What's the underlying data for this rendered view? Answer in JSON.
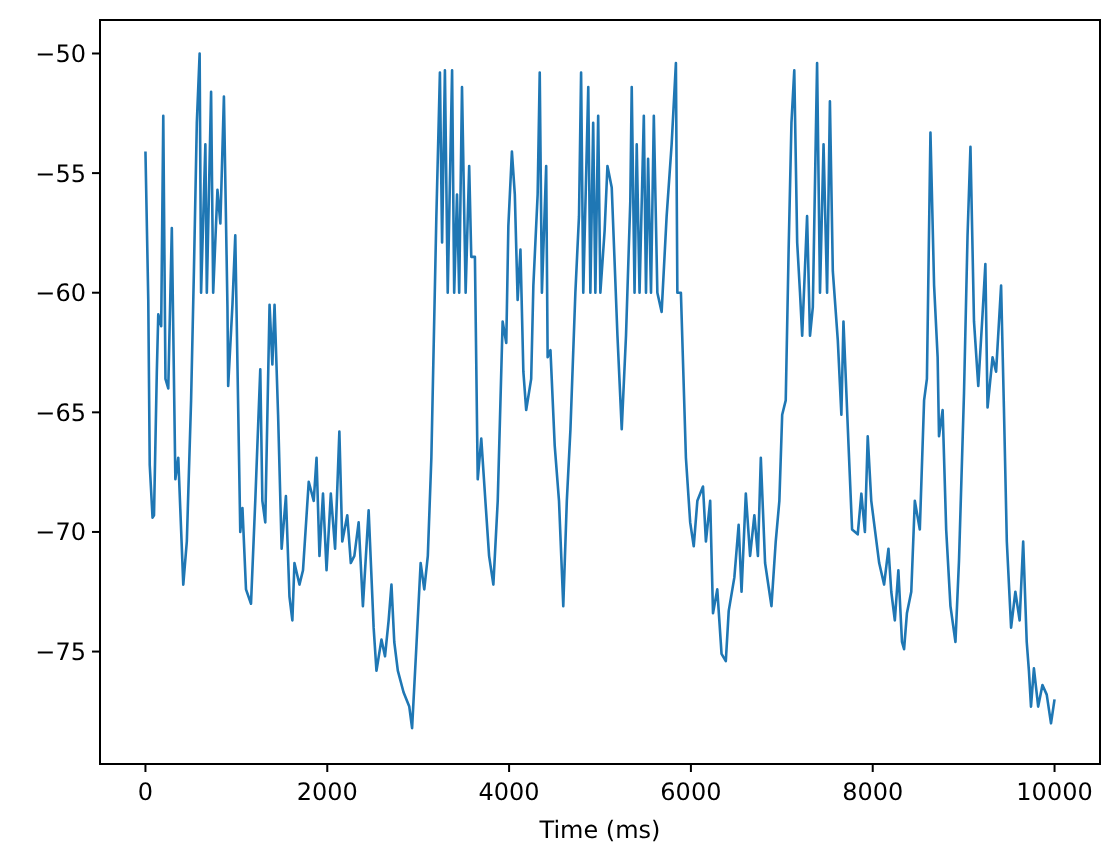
{
  "chart_data": {
    "type": "line",
    "xlabel": "Time (ms)",
    "xlim": [
      -500,
      10500
    ],
    "ylim": [
      -79.7,
      -48.6
    ],
    "xticks": [
      0,
      2000,
      4000,
      6000,
      8000,
      10000
    ],
    "yticks": [
      {
        "value": -75,
        "label": "−75"
      },
      {
        "value": -70,
        "label": "−70"
      },
      {
        "value": -65,
        "label": "−65"
      },
      {
        "value": -60,
        "label": "−60"
      },
      {
        "value": -55,
        "label": "−55"
      },
      {
        "value": -50,
        "label": "−50"
      }
    ],
    "series": [
      {
        "color": "#1f77b4",
        "x": [
          0,
          31,
          47,
          78,
          94,
          125,
          141,
          173,
          196,
          220,
          251,
          290,
          329,
          361,
          416,
          455,
          502,
          533,
          565,
          596,
          612,
          659,
          675,
          722,
          745,
          792,
          824,
          863,
          902,
          910,
          957,
          988,
          1043,
          1067,
          1106,
          1161,
          1208,
          1263,
          1286,
          1318,
          1365,
          1396,
          1420,
          1459,
          1498,
          1545,
          1584,
          1616,
          1639,
          1694,
          1733,
          1796,
          1851,
          1882,
          1914,
          1953,
          1992,
          2039,
          2086,
          2133,
          2165,
          2220,
          2259,
          2298,
          2345,
          2392,
          2455,
          2510,
          2541,
          2596,
          2635,
          2675,
          2706,
          2737,
          2776,
          2839,
          2902,
          2933,
          2980,
          3027,
          3067,
          3106,
          3145,
          3200,
          3239,
          3263,
          3294,
          3325,
          3373,
          3396,
          3427,
          3451,
          3482,
          3522,
          3561,
          3584,
          3624,
          3655,
          3694,
          3741,
          3780,
          3827,
          3875,
          3929,
          3969,
          3992,
          4031,
          4063,
          4094,
          4125,
          4157,
          4188,
          4243,
          4267,
          4314,
          4337,
          4361,
          4408,
          4424,
          4455,
          4502,
          4549,
          4596,
          4635,
          4675,
          4729,
          4769,
          4792,
          4816,
          4871,
          4894,
          4925,
          4949,
          4980,
          5004,
          5051,
          5082,
          5129,
          5192,
          5239,
          5286,
          5333,
          5349,
          5380,
          5404,
          5435,
          5482,
          5506,
          5529,
          5561,
          5592,
          5631,
          5678,
          5733,
          5788,
          5835,
          5851,
          5890,
          5945,
          5992,
          6031,
          6071,
          6133,
          6165,
          6212,
          6243,
          6290,
          6337,
          6384,
          6416,
          6478,
          6525,
          6557,
          6604,
          6651,
          6698,
          6737,
          6769,
          6816,
          6886,
          6933,
          6973,
          7004,
          7043,
          7075,
          7106,
          7137,
          7169,
          7200,
          7224,
          7278,
          7310,
          7341,
          7388,
          7420,
          7459,
          7498,
          7529,
          7561,
          7616,
          7655,
          7678,
          7733,
          7773,
          7835,
          7875,
          7914,
          7945,
          7984,
          8024,
          8071,
          8125,
          8173,
          8204,
          8243,
          8282,
          8322,
          8345,
          8376,
          8424,
          8463,
          8518,
          8565,
          8596,
          8635,
          8675,
          8714,
          8729,
          8769,
          8808,
          8855,
          8910,
          8949,
          9004,
          9043,
          9075,
          9114,
          9161,
          9208,
          9239,
          9263,
          9318,
          9357,
          9412,
          9443,
          9475,
          9522,
          9569,
          9616,
          9655,
          9694,
          9718,
          9741,
          9773,
          9820,
          9867,
          9914,
          9961,
          10000
        ],
        "values": [
          -54.1,
          -60.3,
          -67.2,
          -69.4,
          -69.3,
          -63.3,
          -60.9,
          -61.4,
          -52.6,
          -63.6,
          -64.0,
          -57.3,
          -67.8,
          -66.9,
          -72.2,
          -70.4,
          -64.5,
          -59.1,
          -52.9,
          -50.0,
          -60.0,
          -53.8,
          -60.0,
          -51.6,
          -60.0,
          -55.7,
          -57.1,
          -51.8,
          -60.6,
          -63.9,
          -60.5,
          -57.6,
          -70.0,
          -69.0,
          -72.4,
          -73.0,
          -68.7,
          -63.2,
          -68.7,
          -69.6,
          -60.5,
          -63.0,
          -60.5,
          -65.1,
          -70.7,
          -68.5,
          -72.7,
          -73.7,
          -71.3,
          -72.2,
          -71.6,
          -67.9,
          -68.7,
          -66.9,
          -71.0,
          -68.4,
          -71.6,
          -68.4,
          -70.7,
          -65.8,
          -70.4,
          -69.3,
          -71.3,
          -71.0,
          -69.6,
          -73.1,
          -69.1,
          -74.0,
          -75.8,
          -74.5,
          -75.2,
          -73.7,
          -72.2,
          -74.6,
          -75.8,
          -76.7,
          -77.3,
          -78.2,
          -74.8,
          -71.3,
          -72.4,
          -71.0,
          -66.9,
          -56.8,
          -50.8,
          -57.9,
          -50.7,
          -60.0,
          -50.7,
          -60.0,
          -55.9,
          -60.0,
          -51.4,
          -60.0,
          -54.7,
          -58.5,
          -58.5,
          -67.8,
          -66.1,
          -68.8,
          -71.0,
          -72.2,
          -68.7,
          -61.2,
          -62.1,
          -57.2,
          -54.1,
          -55.9,
          -60.3,
          -58.2,
          -63.3,
          -64.9,
          -63.6,
          -59.7,
          -55.9,
          -50.8,
          -60.0,
          -54.7,
          -62.7,
          -62.4,
          -66.4,
          -68.7,
          -73.1,
          -68.7,
          -65.7,
          -60.0,
          -56.8,
          -50.8,
          -60.0,
          -51.4,
          -60.0,
          -52.9,
          -60.0,
          -52.6,
          -60.0,
          -57.4,
          -54.7,
          -55.6,
          -61.8,
          -65.7,
          -61.8,
          -56.2,
          -51.4,
          -60.0,
          -53.8,
          -60.0,
          -52.6,
          -60.0,
          -54.4,
          -60.0,
          -52.6,
          -60.0,
          -60.8,
          -56.8,
          -53.8,
          -50.4,
          -60.0,
          -60.0,
          -66.9,
          -69.6,
          -70.6,
          -68.7,
          -68.1,
          -70.4,
          -68.7,
          -73.4,
          -72.4,
          -75.1,
          -75.4,
          -73.3,
          -71.9,
          -69.7,
          -72.5,
          -68.4,
          -71.0,
          -69.3,
          -71.0,
          -66.9,
          -71.3,
          -73.1,
          -70.4,
          -68.7,
          -65.1,
          -64.5,
          -58.2,
          -52.9,
          -50.7,
          -57.9,
          -60.0,
          -61.8,
          -56.8,
          -61.8,
          -60.6,
          -50.4,
          -60.0,
          -53.8,
          -60.0,
          -52.0,
          -59.1,
          -62.0,
          -65.1,
          -61.2,
          -66.3,
          -69.9,
          -70.1,
          -68.4,
          -70.0,
          -66.0,
          -68.7,
          -69.9,
          -71.3,
          -72.2,
          -70.7,
          -72.5,
          -73.7,
          -71.6,
          -74.6,
          -74.9,
          -73.4,
          -72.5,
          -68.7,
          -69.9,
          -64.5,
          -63.6,
          -53.3,
          -59.7,
          -62.7,
          -66.0,
          -64.9,
          -69.9,
          -73.1,
          -74.6,
          -71.2,
          -64.2,
          -57.6,
          -53.9,
          -61.2,
          -63.9,
          -60.9,
          -58.8,
          -64.8,
          -62.7,
          -63.3,
          -59.7,
          -64.8,
          -70.4,
          -74.0,
          -72.5,
          -73.7,
          -70.4,
          -74.6,
          -75.8,
          -77.3,
          -75.7,
          -77.3,
          -76.4,
          -76.8,
          -78.0,
          -77.0
        ]
      }
    ]
  }
}
